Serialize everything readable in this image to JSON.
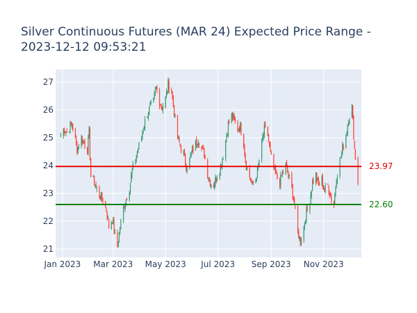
{
  "chart_data": {
    "type": "candlestick",
    "title_lines": [
      "Silver Continuous Futures (MAR 24) Expected Price Range -",
      "2023-12-12 09:53:21"
    ],
    "x_range": [
      "2022-12-24",
      "2023-12-15"
    ],
    "ylim": [
      20.7,
      27.45
    ],
    "x_ticks": [
      {
        "date": "2023-01-01",
        "label": "Jan 2023"
      },
      {
        "date": "2023-03-01",
        "label": "Mar 2023"
      },
      {
        "date": "2023-05-01",
        "label": "May 2023"
      },
      {
        "date": "2023-07-01",
        "label": "Jul 2023"
      },
      {
        "date": "2023-09-01",
        "label": "Sep 2023"
      },
      {
        "date": "2023-11-01",
        "label": "Nov 2023"
      }
    ],
    "y_ticks": [
      21,
      22,
      23,
      24,
      25,
      26,
      27
    ],
    "colors": {
      "background": "#e5ecf6",
      "grid": "#ffffff",
      "increasing": "#3d9970",
      "decreasing": "#ff4136",
      "upper_line": "#e00000",
      "lower_line": "#008000"
    },
    "reference_lines": [
      {
        "name": "upper",
        "value": 23.97,
        "label": "23.97",
        "color": "#e00000"
      },
      {
        "name": "lower",
        "value": 22.6,
        "label": "22.60",
        "color": "#008000"
      }
    ],
    "price_path": [
      [
        "2022-12-30",
        25.1
      ],
      [
        "2023-01-03",
        25.3
      ],
      [
        "2023-01-06",
        25.2
      ],
      [
        "2023-01-12",
        25.5
      ],
      [
        "2023-01-18",
        24.6
      ],
      [
        "2023-01-23",
        25.0
      ],
      [
        "2023-01-30",
        24.6
      ],
      [
        "2023-02-01",
        25.2
      ],
      [
        "2023-02-03",
        23.6
      ],
      [
        "2023-02-07",
        23.4
      ],
      [
        "2023-02-10",
        23.1
      ],
      [
        "2023-02-14",
        22.9
      ],
      [
        "2023-02-17",
        22.8
      ],
      [
        "2023-02-21",
        22.4
      ],
      [
        "2023-02-24",
        21.8
      ],
      [
        "2023-02-28",
        22.1
      ],
      [
        "2023-03-03",
        21.5
      ],
      [
        "2023-03-06",
        21.1
      ],
      [
        "2023-03-09",
        21.8
      ],
      [
        "2023-03-13",
        22.5
      ],
      [
        "2023-03-16",
        22.8
      ],
      [
        "2023-03-20",
        23.2
      ],
      [
        "2023-03-23",
        23.8
      ],
      [
        "2023-03-27",
        24.2
      ],
      [
        "2023-03-30",
        24.6
      ],
      [
        "2023-04-03",
        25.0
      ],
      [
        "2023-04-06",
        25.5
      ],
      [
        "2023-04-10",
        25.9
      ],
      [
        "2023-04-13",
        26.1
      ],
      [
        "2023-04-17",
        26.3
      ],
      [
        "2023-04-20",
        26.8
      ],
      [
        "2023-04-24",
        26.3
      ],
      [
        "2023-04-27",
        26.1
      ],
      [
        "2023-05-01",
        26.4
      ],
      [
        "2023-05-04",
        26.9
      ],
      [
        "2023-05-08",
        26.7
      ],
      [
        "2023-05-11",
        25.9
      ],
      [
        "2023-05-15",
        25.0
      ],
      [
        "2023-05-18",
        24.7
      ],
      [
        "2023-05-22",
        24.4
      ],
      [
        "2023-05-25",
        24.0
      ],
      [
        "2023-05-29",
        24.2
      ],
      [
        "2023-06-01",
        24.5
      ],
      [
        "2023-06-05",
        24.8
      ],
      [
        "2023-06-08",
        25.0
      ],
      [
        "2023-06-12",
        24.6
      ],
      [
        "2023-06-15",
        24.4
      ],
      [
        "2023-06-19",
        23.7
      ],
      [
        "2023-06-22",
        23.4
      ],
      [
        "2023-06-26",
        23.3
      ],
      [
        "2023-06-29",
        23.6
      ],
      [
        "2023-07-03",
        23.9
      ],
      [
        "2023-07-06",
        24.2
      ],
      [
        "2023-07-10",
        24.9
      ],
      [
        "2023-07-13",
        25.5
      ],
      [
        "2023-07-17",
        25.8
      ],
      [
        "2023-07-20",
        25.6
      ],
      [
        "2023-07-24",
        25.3
      ],
      [
        "2023-07-27",
        25.4
      ],
      [
        "2023-07-31",
        24.8
      ],
      [
        "2023-08-03",
        24.0
      ],
      [
        "2023-08-07",
        23.6
      ],
      [
        "2023-08-10",
        23.3
      ],
      [
        "2023-08-14",
        23.5
      ],
      [
        "2023-08-17",
        24.0
      ],
      [
        "2023-08-21",
        24.8
      ],
      [
        "2023-08-24",
        25.3
      ],
      [
        "2023-08-28",
        25.1
      ],
      [
        "2023-08-31",
        24.4
      ],
      [
        "2023-09-04",
        23.9
      ],
      [
        "2023-09-07",
        23.6
      ],
      [
        "2023-09-11",
        23.4
      ],
      [
        "2023-09-14",
        23.7
      ],
      [
        "2023-09-18",
        24.0
      ],
      [
        "2023-09-21",
        23.6
      ],
      [
        "2023-09-25",
        23.2
      ],
      [
        "2023-09-28",
        22.6
      ],
      [
        "2023-10-02",
        21.6
      ],
      [
        "2023-10-05",
        21.3
      ],
      [
        "2023-10-09",
        21.8
      ],
      [
        "2023-10-12",
        22.3
      ],
      [
        "2023-10-16",
        22.8
      ],
      [
        "2023-10-19",
        23.4
      ],
      [
        "2023-10-23",
        23.6
      ],
      [
        "2023-10-26",
        23.3
      ],
      [
        "2023-10-30",
        23.5
      ],
      [
        "2023-11-02",
        23.1
      ],
      [
        "2023-11-06",
        23.3
      ],
      [
        "2023-11-09",
        22.9
      ],
      [
        "2023-11-13",
        22.6
      ],
      [
        "2023-11-16",
        23.6
      ],
      [
        "2023-11-20",
        24.2
      ],
      [
        "2023-11-23",
        24.6
      ],
      [
        "2023-11-27",
        25.1
      ],
      [
        "2023-11-30",
        25.7
      ],
      [
        "2023-12-04",
        26.1
      ],
      [
        "2023-12-07",
        24.6
      ],
      [
        "2023-12-11",
        23.4
      ],
      [
        "2023-12-12",
        23.2
      ]
    ]
  }
}
